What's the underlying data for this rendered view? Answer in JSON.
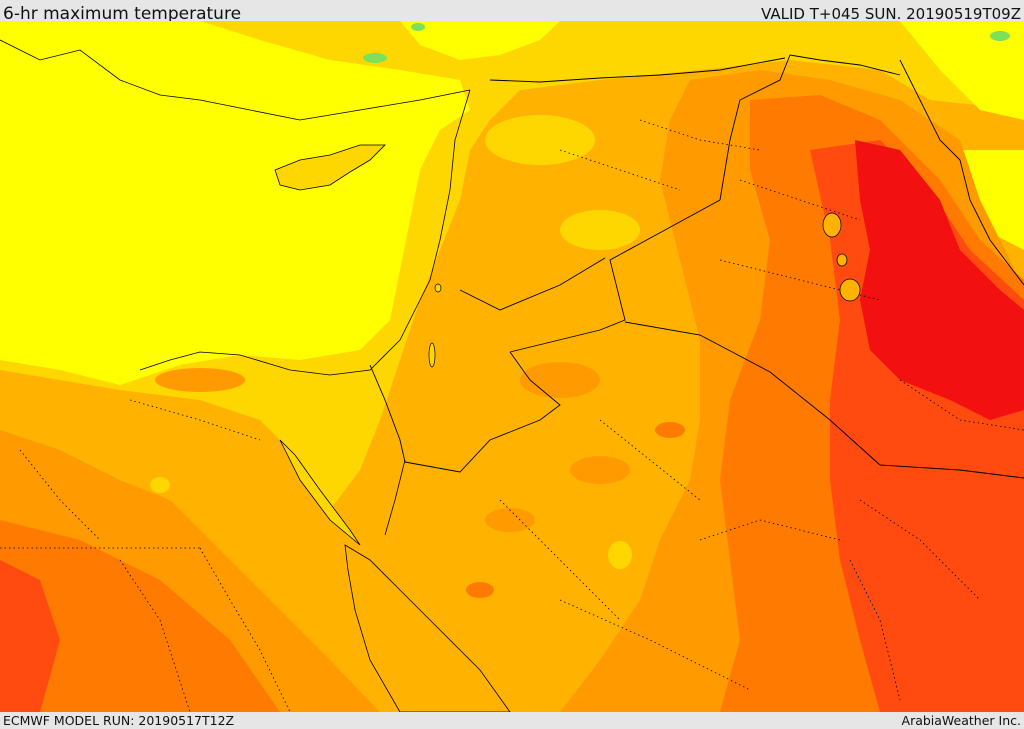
{
  "header": {
    "title": "6-hr maximum temperature",
    "valid": "VALID T+045 SUN. 20190519T09Z"
  },
  "footer": {
    "model_run": "ECMWF MODEL RUN: 20190517T12Z",
    "credit": "ArabiaWeather Inc."
  },
  "palette": {
    "cool_green": "#7de05a",
    "yellow": "#ffff00",
    "gold": "#ffd700",
    "amber": "#ffb300",
    "orange": "#ff9a00",
    "dark_orange": "#ff7a00",
    "red_orange": "#ff4a10",
    "red": "#f21010",
    "border_line": "#000000"
  }
}
